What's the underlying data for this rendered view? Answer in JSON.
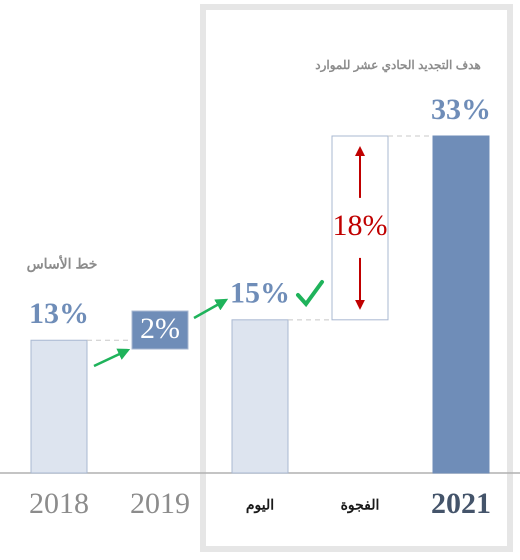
{
  "chart_data": {
    "type": "waterfall",
    "categories": [
      "2018",
      "2019",
      "اليوم",
      "الفجوة",
      "2021"
    ],
    "values": [
      13,
      2,
      15,
      18,
      33
    ],
    "value_labels": [
      "13%",
      "2%",
      "15%",
      "18%",
      "33%"
    ],
    "measure": [
      "absolute",
      "relative",
      "absolute",
      "relative",
      "absolute"
    ],
    "colors": [
      "#dde4ef",
      "#6f8db8",
      "#dde4ef",
      "#ffffff",
      "#6f8db8"
    ],
    "annotations": [
      "خط الأساس",
      "هدف التجديد الحادي عشر للموارد"
    ]
  }
}
